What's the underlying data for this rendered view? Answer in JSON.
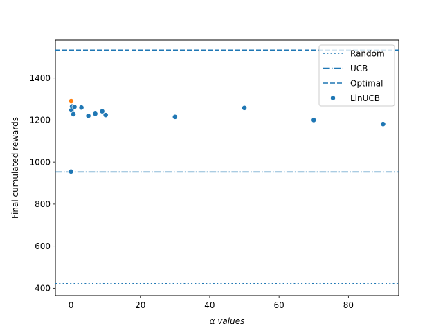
{
  "chart_data": {
    "type": "scatter",
    "xlabel": "α values",
    "ylabel": "Final cumulated rewards",
    "xlim": [
      -4.5,
      94.5
    ],
    "ylim": [
      365,
      1580
    ],
    "xticks": [
      0,
      20,
      40,
      60,
      80
    ],
    "yticks": [
      400,
      600,
      800,
      1000,
      1200,
      1400
    ],
    "grid": false,
    "legend_position": "top-right",
    "reference_lines": [
      {
        "name": "Random",
        "value": 422,
        "style": "dotted",
        "color": "#1f77b4"
      },
      {
        "name": "UCB",
        "value": 953,
        "style": "dashdot",
        "color": "#1f77b4"
      },
      {
        "name": "Optimal",
        "value": 1533,
        "style": "dashed",
        "color": "#1f77b4"
      }
    ],
    "series": [
      {
        "name": "LinUCB",
        "color": "#1f77b4",
        "points": [
          {
            "x": 0,
            "y": 955
          },
          {
            "x": 0.1,
            "y": 1247
          },
          {
            "x": 0.3,
            "y": 1265
          },
          {
            "x": 0.7,
            "y": 1228
          },
          {
            "x": 1,
            "y": 1263
          },
          {
            "x": 3,
            "y": 1260
          },
          {
            "x": 5,
            "y": 1220
          },
          {
            "x": 7,
            "y": 1230
          },
          {
            "x": 9,
            "y": 1242
          },
          {
            "x": 10,
            "y": 1224
          },
          {
            "x": 30,
            "y": 1215
          },
          {
            "x": 50,
            "y": 1258
          },
          {
            "x": 70,
            "y": 1200
          },
          {
            "x": 90,
            "y": 1181
          }
        ]
      },
      {
        "name": "",
        "color": "#ff7f0e",
        "points": [
          {
            "x": 0.05,
            "y": 1290
          }
        ]
      }
    ]
  }
}
